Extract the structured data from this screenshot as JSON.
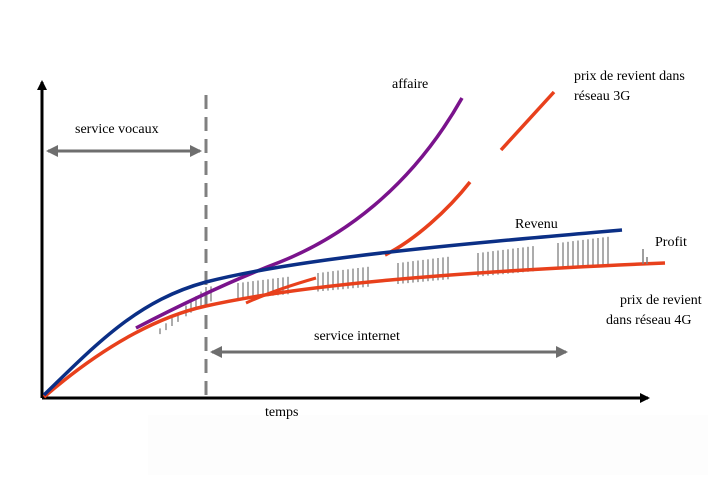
{
  "diagram": {
    "labels": {
      "voice_services": "service vocaux",
      "internet_service": "service internet",
      "time_axis": "temps",
      "business_curve": "affaire",
      "cost_3g_line1": "prix de revient dans",
      "cost_3g_line2": "réseau 3G",
      "revenue_curve": "Revenu",
      "profit": "Profit",
      "cost_4g_line1": "prix de revient",
      "cost_4g_line2": "dans réseau 4G"
    },
    "colors": {
      "revenue": "#0b2f86",
      "cost": "#e8401c",
      "business": "#7a138c",
      "dash_divider": "#808080",
      "span_arrows": "#6e6e6e",
      "axes": "#000000",
      "hatch": "#7f7f7f"
    }
  }
}
